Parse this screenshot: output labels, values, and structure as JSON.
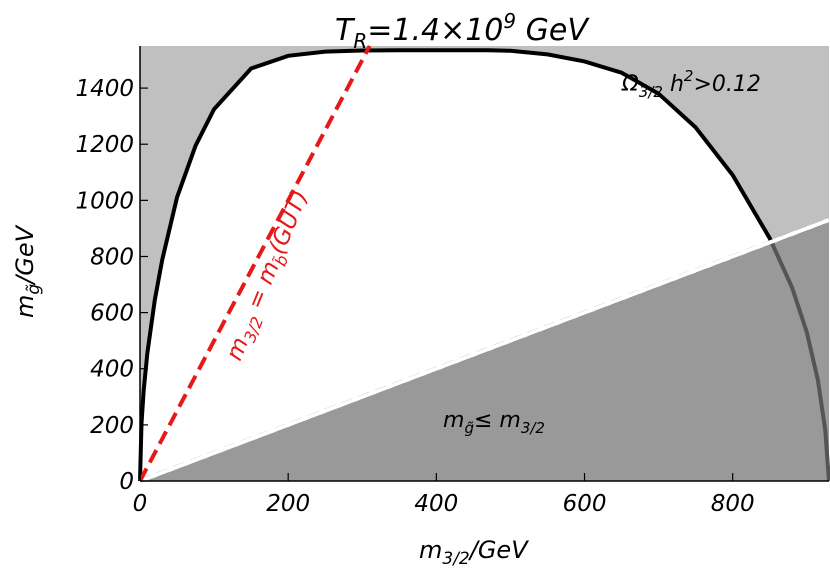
{
  "chart_data": {
    "type": "area",
    "title": "T_R=1.4×10^9 GeV",
    "title_parts": {
      "base": "T",
      "sub": "R",
      "mid": "=1.4×10",
      "sup": "9",
      "end": " GeV"
    },
    "xlabel_parts": {
      "base": "m",
      "sub": "3/2",
      "end": "/GeV"
    },
    "ylabel_parts": {
      "base": "m",
      "sub": "g̃",
      "end": "/GeV"
    },
    "xlim": [
      0,
      930
    ],
    "ylim": [
      0,
      1550
    ],
    "x_ticks": [
      0,
      200,
      400,
      600,
      800
    ],
    "y_ticks": [
      0,
      200,
      400,
      600,
      800,
      1000,
      1200,
      1400
    ],
    "grid": false,
    "series": [
      {
        "kind": "boundary-curve",
        "x": [
          0,
          2,
          5,
          10,
          20,
          30,
          50,
          75,
          100,
          150,
          200,
          250,
          300,
          350,
          400,
          450,
          470,
          500,
          550,
          600,
          650,
          700,
          750,
          800,
          850,
          880,
          900,
          915,
          925,
          930
        ],
        "y": [
          0,
          205,
          324,
          457,
          645,
          788,
          1010,
          1195,
          1325,
          1470,
          1515,
          1530,
          1534,
          1535,
          1535,
          1535,
          1535,
          1533,
          1520,
          1495,
          1455,
          1380,
          1260,
          1090,
          865,
          690,
          530,
          360,
          180,
          0
        ]
      },
      {
        "kind": "dashed-line",
        "label_parts": {
          "base": "m",
          "sub": "3/2",
          "mid": " = m",
          "sub2": "b̃",
          "end": "(GUT)"
        },
        "x": [
          0,
          310
        ],
        "y": [
          0,
          1550
        ]
      },
      {
        "kind": "dashed-line",
        "x": [
          0,
          930
        ],
        "y": [
          0,
          930
        ]
      }
    ],
    "regions": [
      {
        "label_parts": {
          "base": "Ω",
          "sub": "3/2",
          "mid": " h",
          "sup": "2",
          "end": ">0.12"
        },
        "shade": "light"
      },
      {
        "label_parts": {
          "base": "m",
          "sub": "g̃",
          "end": "≤  m",
          "sub2": "3/2"
        },
        "shade": "dark"
      }
    ],
    "colors": {
      "light_region": "#c0c0c0",
      "dark_region": "#999999",
      "curve": "#000000",
      "red_line": "#e61919"
    }
  }
}
